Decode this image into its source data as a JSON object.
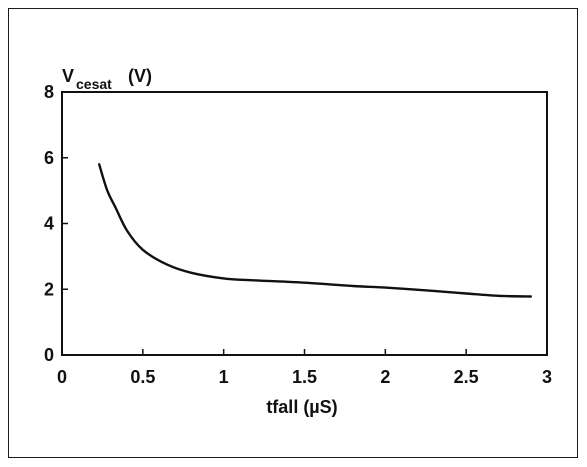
{
  "chart_data": {
    "type": "line",
    "ylabel_main": "V",
    "ylabel_sub": "cesat",
    "ylabel_unit": "(V)",
    "xlabel": "tfall (µS)",
    "xlim": [
      0,
      3
    ],
    "ylim": [
      0,
      8
    ],
    "x_ticks": [
      "0",
      "0.5",
      "1",
      "1.5",
      "2",
      "2.5",
      "3"
    ],
    "y_ticks": [
      "0",
      "2",
      "4",
      "6",
      "8"
    ],
    "grid": false,
    "series": [
      {
        "x": [
          0.23,
          0.28,
          0.33,
          0.4,
          0.5,
          0.65,
          0.8,
          1.0,
          1.2,
          1.5,
          1.8,
          2.0,
          2.3,
          2.5,
          2.7,
          2.9
        ],
        "y": [
          5.8,
          5.0,
          4.5,
          3.8,
          3.2,
          2.75,
          2.5,
          2.33,
          2.27,
          2.2,
          2.1,
          2.05,
          1.95,
          1.87,
          1.8,
          1.78
        ]
      }
    ],
    "line_color": "#111111"
  }
}
